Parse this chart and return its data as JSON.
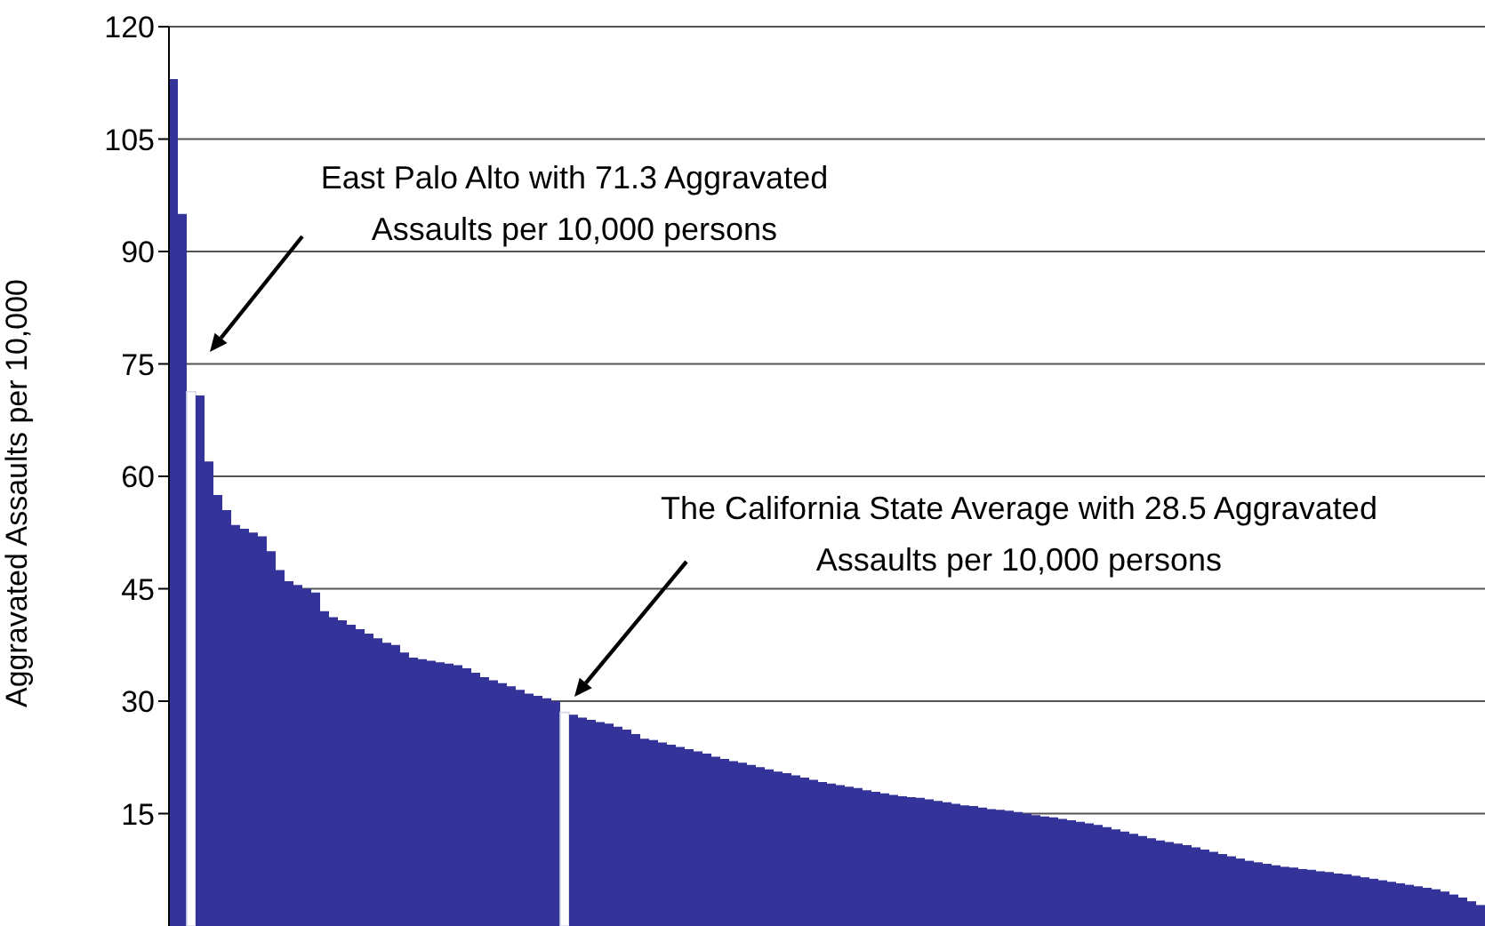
{
  "chart_data": {
    "type": "bar",
    "ylabel": "Aggravated Assaults per 10,000",
    "categories": [
      null,
      null,
      null,
      null,
      null,
      null,
      null,
      null,
      null,
      null,
      null,
      null,
      null,
      null,
      null,
      null,
      null,
      null,
      null,
      null,
      null,
      null,
      null,
      null,
      null,
      null,
      null,
      null,
      null,
      null,
      null,
      null,
      null,
      null,
      null,
      null,
      null,
      null,
      null,
      null,
      null,
      null,
      null,
      null,
      null,
      null,
      null,
      null,
      null,
      null,
      null,
      null,
      null,
      null,
      null,
      null,
      null,
      null,
      null,
      null,
      null,
      null,
      null,
      null,
      null,
      null,
      null,
      null,
      null,
      null,
      null,
      null,
      null,
      null,
      null,
      null,
      null,
      null,
      null,
      null,
      null,
      null,
      null,
      null,
      null,
      null,
      null,
      null,
      null,
      null,
      null,
      null,
      null,
      null,
      null,
      null,
      null,
      null,
      null,
      null,
      null,
      null,
      null,
      null,
      null,
      null,
      null,
      null,
      null,
      null,
      null,
      null,
      null,
      null,
      null,
      null,
      null,
      null,
      null,
      null,
      null,
      null,
      null,
      null,
      null,
      null,
      null,
      null,
      null,
      null,
      null,
      null,
      null,
      null,
      null,
      null,
      null,
      null,
      null,
      null,
      null,
      null,
      null,
      null,
      null,
      null,
      null,
      null
    ],
    "values": [
      113,
      95,
      71.3,
      70.8,
      62,
      57.5,
      55.5,
      53.5,
      53,
      52.5,
      52,
      50,
      47.5,
      46,
      45.5,
      45,
      44.5,
      42,
      41.2,
      40.8,
      40.2,
      39.6,
      39,
      38.4,
      37.8,
      37.5,
      36.5,
      35.8,
      35.6,
      35.4,
      35.2,
      35,
      34.8,
      34.4,
      33.8,
      33.2,
      32.8,
      32.4,
      32,
      31.5,
      31,
      30.7,
      30.4,
      30,
      28.5,
      28.2,
      27.8,
      27.5,
      27.2,
      27,
      26.6,
      26.2,
      25.6,
      25,
      24.8,
      24.5,
      24.2,
      23.9,
      23.6,
      23.3,
      23,
      22.6,
      22.3,
      22,
      21.8,
      21.5,
      21.2,
      20.9,
      20.6,
      20.4,
      20.1,
      19.8,
      19.5,
      19.2,
      19,
      18.8,
      18.6,
      18.4,
      18.1,
      17.9,
      17.7,
      17.5,
      17.3,
      17.2,
      17.1,
      16.9,
      16.7,
      16.5,
      16.3,
      16.1,
      16,
      15.8,
      15.6,
      15.5,
      15.4,
      15.2,
      15,
      14.8,
      14.6,
      14.5,
      14.3,
      14.1,
      13.9,
      13.7,
      13.5,
      13.2,
      12.9,
      12.6,
      12.3,
      12,
      11.7,
      11.4,
      11.2,
      11,
      10.8,
      10.5,
      10.2,
      9.9,
      9.6,
      9.3,
      9,
      8.7,
      8.5,
      8.3,
      8.1,
      7.9,
      7.8,
      7.6,
      7.5,
      7.3,
      7.2,
      7,
      6.9,
      6.7,
      6.5,
      6.3,
      6.1,
      5.9,
      5.7,
      5.5,
      5.3,
      5.1,
      4.9,
      4.6,
      4.2,
      3.8,
      3.3,
      2.8
    ],
    "colors": [
      "#333399",
      "#333399",
      "#ffffff",
      "#333399",
      "#333399",
      "#333399",
      "#333399",
      "#333399",
      "#333399",
      "#333399",
      "#333399",
      "#333399",
      "#333399",
      "#333399",
      "#333399",
      "#333399",
      "#333399",
      "#333399",
      "#333399",
      "#333399",
      "#333399",
      "#333399",
      "#333399",
      "#333399",
      "#333399",
      "#333399",
      "#333399",
      "#333399",
      "#333399",
      "#333399",
      "#333399",
      "#333399",
      "#333399",
      "#333399",
      "#333399",
      "#333399",
      "#333399",
      "#333399",
      "#333399",
      "#333399",
      "#333399",
      "#333399",
      "#333399",
      "#333399",
      "#ffffff",
      "#333399",
      "#333399",
      "#333399",
      "#333399",
      "#333399",
      "#333399",
      "#333399",
      "#333399",
      "#333399",
      "#333399",
      "#333399",
      "#333399",
      "#333399",
      "#333399",
      "#333399",
      "#333399",
      "#333399",
      "#333399",
      "#333399",
      "#333399",
      "#333399",
      "#333399",
      "#333399",
      "#333399",
      "#333399",
      "#333399",
      "#333399",
      "#333399",
      "#333399",
      "#333399",
      "#333399",
      "#333399",
      "#333399",
      "#333399",
      "#333399",
      "#333399",
      "#333399",
      "#333399",
      "#333399",
      "#333399",
      "#333399",
      "#333399",
      "#333399",
      "#333399",
      "#333399",
      "#333399",
      "#333399",
      "#333399",
      "#333399",
      "#333399",
      "#333399",
      "#333399",
      "#333399",
      "#333399",
      "#333399",
      "#333399",
      "#333399",
      "#333399",
      "#333399",
      "#333399",
      "#333399",
      "#333399",
      "#333399",
      "#333399",
      "#333399",
      "#333399",
      "#333399",
      "#333399",
      "#333399",
      "#333399",
      "#333399",
      "#333399",
      "#333399",
      "#333399",
      "#333399",
      "#333399",
      "#333399",
      "#333399",
      "#333399",
      "#333399",
      "#333399",
      "#333399",
      "#333399",
      "#333399",
      "#333399",
      "#333399",
      "#333399",
      "#333399",
      "#333399",
      "#333399",
      "#333399",
      "#333399",
      "#333399",
      "#333399",
      "#333399",
      "#333399",
      "#333399",
      "#333399",
      "#333399",
      "#333399",
      "#333399",
      "#333399",
      "#333399"
    ],
    "ylim": [
      0,
      120
    ],
    "yticks": [
      15,
      30,
      45,
      60,
      75,
      90,
      105,
      120
    ],
    "grid": "y",
    "annotations": [
      "East Palo Alto with 71.3 Aggravated Assaults per 10,000 persons",
      "The California State Average with 28.5 Aggravated Assaults per 10,000 persons"
    ]
  }
}
